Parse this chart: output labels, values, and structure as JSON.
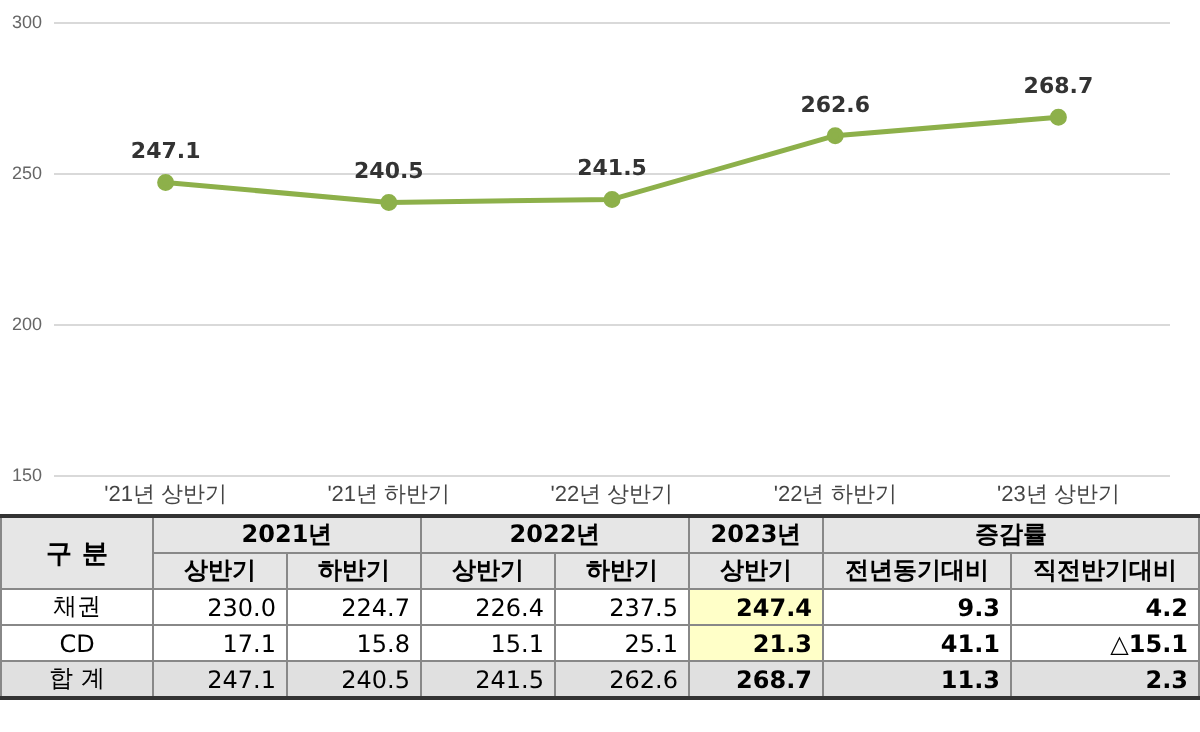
{
  "chart_data": [
    {
      "type": "line",
      "categories": [
        "'21년 상반기",
        "'21년 하반기",
        "'22년 상반기",
        "'22년 하반기",
        "'23년 상반기"
      ],
      "series": [
        {
          "color": "#8db04a",
          "values": [
            247.1,
            240.5,
            241.5,
            262.6,
            268.7
          ]
        }
      ],
      "ylim": [
        150,
        300
      ],
      "yticks": [
        150,
        200,
        250,
        300
      ],
      "grid": "y",
      "legend": false,
      "marker": "circle",
      "line_style": "solid",
      "data_labels": true
    },
    {
      "type": "other",
      "annotations": [
        "구 분",
        "2021년",
        "2022년",
        "2023년",
        "증감률"
      ],
      "categories": [
        "상반기",
        "하반기",
        "상반기",
        "하반기",
        "상반기",
        "전년동기대비",
        "직전반기대비"
      ],
      "y_categories": [
        "채권",
        "CD",
        "합 계"
      ],
      "cell_labels": [
        [
          "230.0",
          "224.7",
          "226.4",
          "237.5",
          "247.4",
          "9.3",
          "4.2"
        ],
        [
          "17.1",
          "15.8",
          "15.1",
          "25.1",
          "21.3",
          "41.1",
          "△15.1"
        ],
        [
          "247.1",
          "240.5",
          "241.5",
          "262.6",
          "268.7",
          "11.3",
          "2.3"
        ]
      ]
    }
  ]
}
